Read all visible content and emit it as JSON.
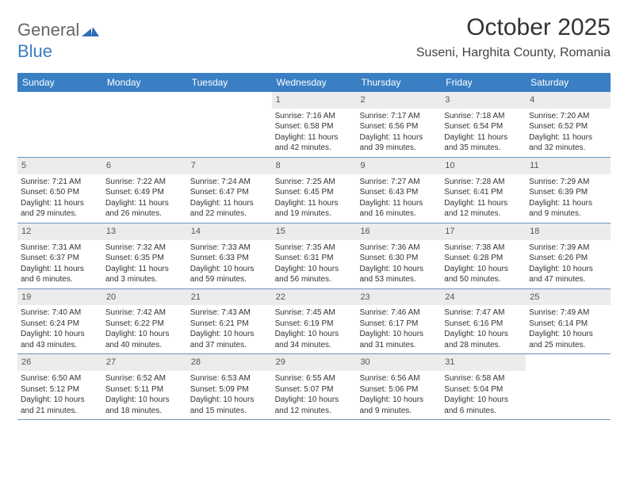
{
  "logo": {
    "part1": "General",
    "part2": "Blue"
  },
  "title": "October 2025",
  "location": "Suseni, Harghita County, Romania",
  "colors": {
    "header_bg": "#3a7fc4",
    "header_text": "#ffffff",
    "daynum_bg": "#ececec",
    "border": "#6a93c1",
    "text": "#333333",
    "background": "#ffffff"
  },
  "layout": {
    "columns": 7,
    "rows": 5,
    "leading_blanks": 3
  },
  "weekdays": [
    "Sunday",
    "Monday",
    "Tuesday",
    "Wednesday",
    "Thursday",
    "Friday",
    "Saturday"
  ],
  "days": [
    {
      "num": "1",
      "sunrise": "Sunrise: 7:16 AM",
      "sunset": "Sunset: 6:58 PM",
      "daylight": "Daylight: 11 hours and 42 minutes."
    },
    {
      "num": "2",
      "sunrise": "Sunrise: 7:17 AM",
      "sunset": "Sunset: 6:56 PM",
      "daylight": "Daylight: 11 hours and 39 minutes."
    },
    {
      "num": "3",
      "sunrise": "Sunrise: 7:18 AM",
      "sunset": "Sunset: 6:54 PM",
      "daylight": "Daylight: 11 hours and 35 minutes."
    },
    {
      "num": "4",
      "sunrise": "Sunrise: 7:20 AM",
      "sunset": "Sunset: 6:52 PM",
      "daylight": "Daylight: 11 hours and 32 minutes."
    },
    {
      "num": "5",
      "sunrise": "Sunrise: 7:21 AM",
      "sunset": "Sunset: 6:50 PM",
      "daylight": "Daylight: 11 hours and 29 minutes."
    },
    {
      "num": "6",
      "sunrise": "Sunrise: 7:22 AM",
      "sunset": "Sunset: 6:49 PM",
      "daylight": "Daylight: 11 hours and 26 minutes."
    },
    {
      "num": "7",
      "sunrise": "Sunrise: 7:24 AM",
      "sunset": "Sunset: 6:47 PM",
      "daylight": "Daylight: 11 hours and 22 minutes."
    },
    {
      "num": "8",
      "sunrise": "Sunrise: 7:25 AM",
      "sunset": "Sunset: 6:45 PM",
      "daylight": "Daylight: 11 hours and 19 minutes."
    },
    {
      "num": "9",
      "sunrise": "Sunrise: 7:27 AM",
      "sunset": "Sunset: 6:43 PM",
      "daylight": "Daylight: 11 hours and 16 minutes."
    },
    {
      "num": "10",
      "sunrise": "Sunrise: 7:28 AM",
      "sunset": "Sunset: 6:41 PM",
      "daylight": "Daylight: 11 hours and 12 minutes."
    },
    {
      "num": "11",
      "sunrise": "Sunrise: 7:29 AM",
      "sunset": "Sunset: 6:39 PM",
      "daylight": "Daylight: 11 hours and 9 minutes."
    },
    {
      "num": "12",
      "sunrise": "Sunrise: 7:31 AM",
      "sunset": "Sunset: 6:37 PM",
      "daylight": "Daylight: 11 hours and 6 minutes."
    },
    {
      "num": "13",
      "sunrise": "Sunrise: 7:32 AM",
      "sunset": "Sunset: 6:35 PM",
      "daylight": "Daylight: 11 hours and 3 minutes."
    },
    {
      "num": "14",
      "sunrise": "Sunrise: 7:33 AM",
      "sunset": "Sunset: 6:33 PM",
      "daylight": "Daylight: 10 hours and 59 minutes."
    },
    {
      "num": "15",
      "sunrise": "Sunrise: 7:35 AM",
      "sunset": "Sunset: 6:31 PM",
      "daylight": "Daylight: 10 hours and 56 minutes."
    },
    {
      "num": "16",
      "sunrise": "Sunrise: 7:36 AM",
      "sunset": "Sunset: 6:30 PM",
      "daylight": "Daylight: 10 hours and 53 minutes."
    },
    {
      "num": "17",
      "sunrise": "Sunrise: 7:38 AM",
      "sunset": "Sunset: 6:28 PM",
      "daylight": "Daylight: 10 hours and 50 minutes."
    },
    {
      "num": "18",
      "sunrise": "Sunrise: 7:39 AM",
      "sunset": "Sunset: 6:26 PM",
      "daylight": "Daylight: 10 hours and 47 minutes."
    },
    {
      "num": "19",
      "sunrise": "Sunrise: 7:40 AM",
      "sunset": "Sunset: 6:24 PM",
      "daylight": "Daylight: 10 hours and 43 minutes."
    },
    {
      "num": "20",
      "sunrise": "Sunrise: 7:42 AM",
      "sunset": "Sunset: 6:22 PM",
      "daylight": "Daylight: 10 hours and 40 minutes."
    },
    {
      "num": "21",
      "sunrise": "Sunrise: 7:43 AM",
      "sunset": "Sunset: 6:21 PM",
      "daylight": "Daylight: 10 hours and 37 minutes."
    },
    {
      "num": "22",
      "sunrise": "Sunrise: 7:45 AM",
      "sunset": "Sunset: 6:19 PM",
      "daylight": "Daylight: 10 hours and 34 minutes."
    },
    {
      "num": "23",
      "sunrise": "Sunrise: 7:46 AM",
      "sunset": "Sunset: 6:17 PM",
      "daylight": "Daylight: 10 hours and 31 minutes."
    },
    {
      "num": "24",
      "sunrise": "Sunrise: 7:47 AM",
      "sunset": "Sunset: 6:16 PM",
      "daylight": "Daylight: 10 hours and 28 minutes."
    },
    {
      "num": "25",
      "sunrise": "Sunrise: 7:49 AM",
      "sunset": "Sunset: 6:14 PM",
      "daylight": "Daylight: 10 hours and 25 minutes."
    },
    {
      "num": "26",
      "sunrise": "Sunrise: 6:50 AM",
      "sunset": "Sunset: 5:12 PM",
      "daylight": "Daylight: 10 hours and 21 minutes."
    },
    {
      "num": "27",
      "sunrise": "Sunrise: 6:52 AM",
      "sunset": "Sunset: 5:11 PM",
      "daylight": "Daylight: 10 hours and 18 minutes."
    },
    {
      "num": "28",
      "sunrise": "Sunrise: 6:53 AM",
      "sunset": "Sunset: 5:09 PM",
      "daylight": "Daylight: 10 hours and 15 minutes."
    },
    {
      "num": "29",
      "sunrise": "Sunrise: 6:55 AM",
      "sunset": "Sunset: 5:07 PM",
      "daylight": "Daylight: 10 hours and 12 minutes."
    },
    {
      "num": "30",
      "sunrise": "Sunrise: 6:56 AM",
      "sunset": "Sunset: 5:06 PM",
      "daylight": "Daylight: 10 hours and 9 minutes."
    },
    {
      "num": "31",
      "sunrise": "Sunrise: 6:58 AM",
      "sunset": "Sunset: 5:04 PM",
      "daylight": "Daylight: 10 hours and 6 minutes."
    }
  ]
}
